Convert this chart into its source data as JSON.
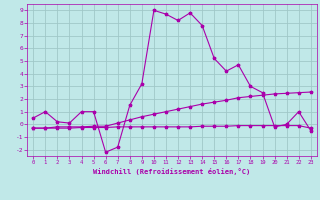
{
  "background_color": "#c0e8e8",
  "grid_color": "#a0c8c8",
  "line_color": "#aa00aa",
  "xlabel": "Windchill (Refroidissement éolien,°C)",
  "ylim": [
    -2.5,
    9.5
  ],
  "xlim": [
    -0.5,
    23.5
  ],
  "yticks": [
    -2,
    -1,
    0,
    1,
    2,
    3,
    4,
    5,
    6,
    7,
    8,
    9
  ],
  "xticks": [
    0,
    1,
    2,
    3,
    4,
    5,
    6,
    7,
    8,
    9,
    10,
    11,
    12,
    13,
    14,
    15,
    16,
    17,
    18,
    19,
    20,
    21,
    22,
    23
  ],
  "series1_x": [
    0,
    1,
    2,
    3,
    4,
    5,
    6,
    7,
    8,
    9,
    10,
    11,
    12,
    13,
    14,
    15,
    16,
    17,
    18,
    19,
    20,
    21,
    22,
    23
  ],
  "series1_y": [
    0.5,
    1.0,
    0.2,
    0.1,
    1.0,
    1.0,
    -2.2,
    -1.8,
    1.5,
    3.2,
    9.0,
    8.7,
    8.2,
    8.8,
    7.8,
    5.2,
    4.2,
    4.7,
    3.0,
    2.5,
    -0.2,
    0.0,
    1.0,
    -0.5
  ],
  "series2_x": [
    0,
    1,
    2,
    3,
    4,
    5,
    6,
    7,
    8,
    9,
    10,
    11,
    12,
    13,
    14,
    15,
    16,
    17,
    18,
    19,
    20,
    21,
    22,
    23
  ],
  "series2_y": [
    -0.3,
    -0.3,
    -0.2,
    -0.2,
    -0.2,
    -0.15,
    -0.15,
    0.1,
    0.35,
    0.6,
    0.8,
    1.0,
    1.2,
    1.4,
    1.6,
    1.75,
    1.9,
    2.1,
    2.2,
    2.3,
    2.4,
    2.45,
    2.5,
    2.55
  ],
  "series3_x": [
    0,
    1,
    2,
    3,
    4,
    5,
    6,
    7,
    8,
    9,
    10,
    11,
    12,
    13,
    14,
    15,
    16,
    17,
    18,
    19,
    20,
    21,
    22,
    23
  ],
  "series3_y": [
    -0.3,
    -0.3,
    -0.3,
    -0.3,
    -0.25,
    -0.25,
    -0.25,
    -0.2,
    -0.2,
    -0.2,
    -0.2,
    -0.2,
    -0.2,
    -0.2,
    -0.15,
    -0.15,
    -0.15,
    -0.1,
    -0.1,
    -0.1,
    -0.1,
    -0.1,
    -0.1,
    -0.3
  ]
}
